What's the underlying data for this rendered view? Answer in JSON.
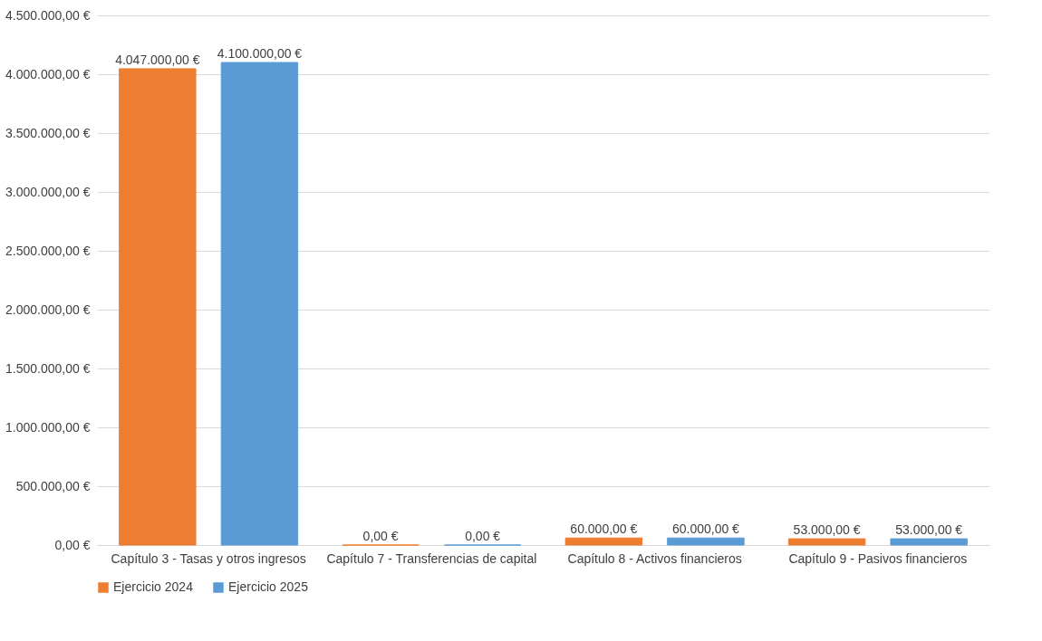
{
  "chart_data": {
    "type": "bar",
    "categories": [
      "Capítulo 3 - Tasas y otros ingresos",
      "Capítulo 7 - Transferencias de capital",
      "Capítulo 8 - Activos financieros",
      "Capítulo 9 - Pasivos financieros"
    ],
    "series": [
      {
        "name": "Ejercicio 2024",
        "color": "#ed7d31",
        "values": [
          4047000,
          0,
          60000,
          53000
        ],
        "value_labels": [
          "4.047.000,00 €",
          "0,00 €",
          "60.000,00 €",
          "53.000,00 €"
        ]
      },
      {
        "name": "Ejercicio 2025",
        "color": "#5b9bd5",
        "values": [
          4100000,
          0,
          60000,
          53000
        ],
        "value_labels": [
          "4.100.000,00 €",
          "0,00 €",
          "60.000,00 €",
          "53.000,00 €"
        ]
      }
    ],
    "ylim": [
      0,
      4500000
    ],
    "yticks": [
      {
        "value": 0,
        "label": "0,00 €"
      },
      {
        "value": 500000,
        "label": "500.000,00 €"
      },
      {
        "value": 1000000,
        "label": "1.000.000,00 €"
      },
      {
        "value": 1500000,
        "label": "1.500.000,00 €"
      },
      {
        "value": 2000000,
        "label": "2.000.000,00 €"
      },
      {
        "value": 2500000,
        "label": "2.500.000,00 €"
      },
      {
        "value": 3000000,
        "label": "3.000.000,00 €"
      },
      {
        "value": 3500000,
        "label": "3.500.000,00 €"
      },
      {
        "value": 4000000,
        "label": "4.000.000,00 €"
      },
      {
        "value": 4500000,
        "label": "4.500.000,00 €"
      }
    ],
    "grid": "y",
    "legend": "bottom"
  }
}
